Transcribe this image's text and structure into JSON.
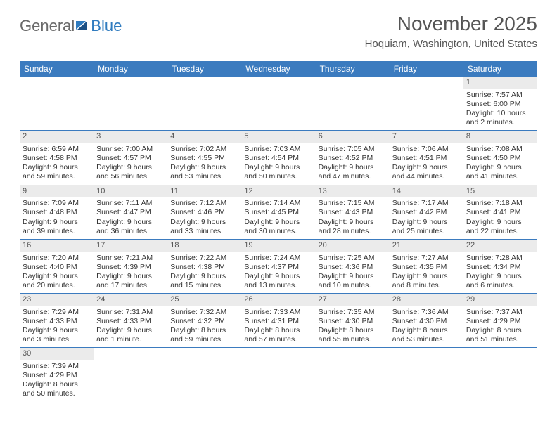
{
  "brand": {
    "general": "General",
    "blue": "Blue"
  },
  "title": "November 2025",
  "location": "Hoquiam, Washington, United States",
  "colors": {
    "header_bg": "#3b7bbf",
    "header_text": "#ffffff",
    "daynum_bg": "#ebebeb",
    "row_border": "#3b7bbf",
    "text": "#333333",
    "title_text": "#555555",
    "background": "#ffffff"
  },
  "day_names": [
    "Sunday",
    "Monday",
    "Tuesday",
    "Wednesday",
    "Thursday",
    "Friday",
    "Saturday"
  ],
  "weeks": [
    [
      null,
      null,
      null,
      null,
      null,
      null,
      {
        "n": "1",
        "sunrise": "Sunrise: 7:57 AM",
        "sunset": "Sunset: 6:00 PM",
        "daylight": "Daylight: 10 hours and 2 minutes."
      }
    ],
    [
      {
        "n": "2",
        "sunrise": "Sunrise: 6:59 AM",
        "sunset": "Sunset: 4:58 PM",
        "daylight": "Daylight: 9 hours and 59 minutes."
      },
      {
        "n": "3",
        "sunrise": "Sunrise: 7:00 AM",
        "sunset": "Sunset: 4:57 PM",
        "daylight": "Daylight: 9 hours and 56 minutes."
      },
      {
        "n": "4",
        "sunrise": "Sunrise: 7:02 AM",
        "sunset": "Sunset: 4:55 PM",
        "daylight": "Daylight: 9 hours and 53 minutes."
      },
      {
        "n": "5",
        "sunrise": "Sunrise: 7:03 AM",
        "sunset": "Sunset: 4:54 PM",
        "daylight": "Daylight: 9 hours and 50 minutes."
      },
      {
        "n": "6",
        "sunrise": "Sunrise: 7:05 AM",
        "sunset": "Sunset: 4:52 PM",
        "daylight": "Daylight: 9 hours and 47 minutes."
      },
      {
        "n": "7",
        "sunrise": "Sunrise: 7:06 AM",
        "sunset": "Sunset: 4:51 PM",
        "daylight": "Daylight: 9 hours and 44 minutes."
      },
      {
        "n": "8",
        "sunrise": "Sunrise: 7:08 AM",
        "sunset": "Sunset: 4:50 PM",
        "daylight": "Daylight: 9 hours and 41 minutes."
      }
    ],
    [
      {
        "n": "9",
        "sunrise": "Sunrise: 7:09 AM",
        "sunset": "Sunset: 4:48 PM",
        "daylight": "Daylight: 9 hours and 39 minutes."
      },
      {
        "n": "10",
        "sunrise": "Sunrise: 7:11 AM",
        "sunset": "Sunset: 4:47 PM",
        "daylight": "Daylight: 9 hours and 36 minutes."
      },
      {
        "n": "11",
        "sunrise": "Sunrise: 7:12 AM",
        "sunset": "Sunset: 4:46 PM",
        "daylight": "Daylight: 9 hours and 33 minutes."
      },
      {
        "n": "12",
        "sunrise": "Sunrise: 7:14 AM",
        "sunset": "Sunset: 4:45 PM",
        "daylight": "Daylight: 9 hours and 30 minutes."
      },
      {
        "n": "13",
        "sunrise": "Sunrise: 7:15 AM",
        "sunset": "Sunset: 4:43 PM",
        "daylight": "Daylight: 9 hours and 28 minutes."
      },
      {
        "n": "14",
        "sunrise": "Sunrise: 7:17 AM",
        "sunset": "Sunset: 4:42 PM",
        "daylight": "Daylight: 9 hours and 25 minutes."
      },
      {
        "n": "15",
        "sunrise": "Sunrise: 7:18 AM",
        "sunset": "Sunset: 4:41 PM",
        "daylight": "Daylight: 9 hours and 22 minutes."
      }
    ],
    [
      {
        "n": "16",
        "sunrise": "Sunrise: 7:20 AM",
        "sunset": "Sunset: 4:40 PM",
        "daylight": "Daylight: 9 hours and 20 minutes."
      },
      {
        "n": "17",
        "sunrise": "Sunrise: 7:21 AM",
        "sunset": "Sunset: 4:39 PM",
        "daylight": "Daylight: 9 hours and 17 minutes."
      },
      {
        "n": "18",
        "sunrise": "Sunrise: 7:22 AM",
        "sunset": "Sunset: 4:38 PM",
        "daylight": "Daylight: 9 hours and 15 minutes."
      },
      {
        "n": "19",
        "sunrise": "Sunrise: 7:24 AM",
        "sunset": "Sunset: 4:37 PM",
        "daylight": "Daylight: 9 hours and 13 minutes."
      },
      {
        "n": "20",
        "sunrise": "Sunrise: 7:25 AM",
        "sunset": "Sunset: 4:36 PM",
        "daylight": "Daylight: 9 hours and 10 minutes."
      },
      {
        "n": "21",
        "sunrise": "Sunrise: 7:27 AM",
        "sunset": "Sunset: 4:35 PM",
        "daylight": "Daylight: 9 hours and 8 minutes."
      },
      {
        "n": "22",
        "sunrise": "Sunrise: 7:28 AM",
        "sunset": "Sunset: 4:34 PM",
        "daylight": "Daylight: 9 hours and 6 minutes."
      }
    ],
    [
      {
        "n": "23",
        "sunrise": "Sunrise: 7:29 AM",
        "sunset": "Sunset: 4:33 PM",
        "daylight": "Daylight: 9 hours and 3 minutes."
      },
      {
        "n": "24",
        "sunrise": "Sunrise: 7:31 AM",
        "sunset": "Sunset: 4:33 PM",
        "daylight": "Daylight: 9 hours and 1 minute."
      },
      {
        "n": "25",
        "sunrise": "Sunrise: 7:32 AM",
        "sunset": "Sunset: 4:32 PM",
        "daylight": "Daylight: 8 hours and 59 minutes."
      },
      {
        "n": "26",
        "sunrise": "Sunrise: 7:33 AM",
        "sunset": "Sunset: 4:31 PM",
        "daylight": "Daylight: 8 hours and 57 minutes."
      },
      {
        "n": "27",
        "sunrise": "Sunrise: 7:35 AM",
        "sunset": "Sunset: 4:30 PM",
        "daylight": "Daylight: 8 hours and 55 minutes."
      },
      {
        "n": "28",
        "sunrise": "Sunrise: 7:36 AM",
        "sunset": "Sunset: 4:30 PM",
        "daylight": "Daylight: 8 hours and 53 minutes."
      },
      {
        "n": "29",
        "sunrise": "Sunrise: 7:37 AM",
        "sunset": "Sunset: 4:29 PM",
        "daylight": "Daylight: 8 hours and 51 minutes."
      }
    ],
    [
      {
        "n": "30",
        "sunrise": "Sunrise: 7:39 AM",
        "sunset": "Sunset: 4:29 PM",
        "daylight": "Daylight: 8 hours and 50 minutes."
      },
      null,
      null,
      null,
      null,
      null,
      null
    ]
  ]
}
